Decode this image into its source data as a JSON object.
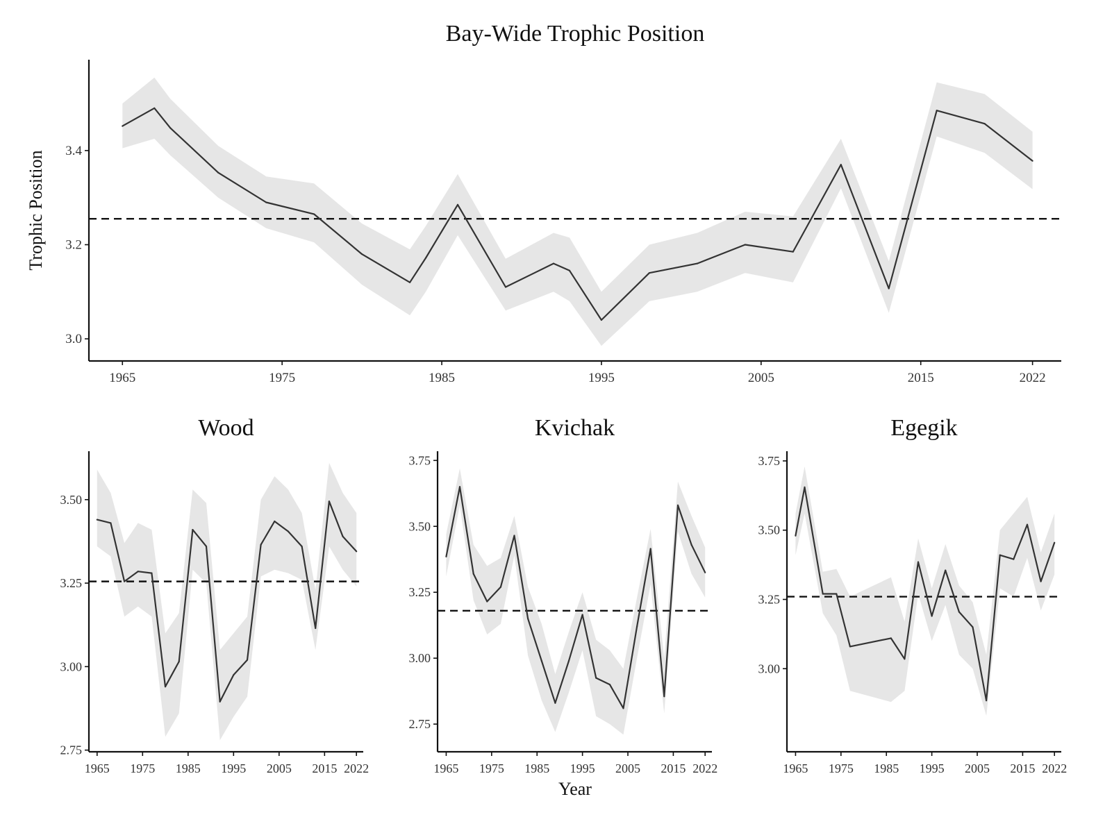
{
  "figure": {
    "title": "Bay-Wide Trophic Position",
    "ylabel": "Trophic Position",
    "xlabel": "Year"
  },
  "chart_data": [
    {
      "id": "baywide",
      "type": "line",
      "title": "Bay-Wide Trophic Position",
      "ylabel": "Trophic Position",
      "xlabel": "",
      "xlim": [
        1962.9,
        2023.8
      ],
      "ylim": [
        2.953,
        3.593
      ],
      "xticks": [
        1965,
        1975,
        1985,
        1995,
        2005,
        2015,
        2022
      ],
      "yticks": [
        3.0,
        3.2,
        3.4
      ],
      "ytick_labels": [
        "3.0",
        "3.2",
        "3.4"
      ],
      "reference_line": 3.255,
      "series": [
        {
          "name": "trophic position",
          "x": [
            1965,
            1967,
            1968,
            1971,
            1974,
            1977,
            1980,
            1983,
            1984,
            1986,
            1989,
            1992,
            1993,
            1995,
            1998,
            2001,
            2004,
            2007,
            2010,
            2013,
            2016,
            2019,
            2022
          ],
          "y": [
            3.452,
            3.49,
            3.448,
            3.353,
            3.29,
            3.265,
            3.18,
            3.12,
            3.172,
            3.285,
            3.11,
            3.16,
            3.145,
            3.04,
            3.14,
            3.16,
            3.2,
            3.185,
            3.37,
            3.107,
            3.485,
            3.457,
            3.378
          ],
          "lower": [
            3.405,
            3.425,
            3.39,
            3.3,
            3.235,
            3.205,
            3.115,
            3.05,
            3.1,
            3.22,
            3.06,
            3.1,
            3.08,
            2.985,
            3.08,
            3.1,
            3.14,
            3.12,
            3.32,
            3.055,
            3.43,
            3.395,
            3.318
          ],
          "upper": [
            3.5,
            3.555,
            3.51,
            3.41,
            3.345,
            3.33,
            3.245,
            3.19,
            3.24,
            3.35,
            3.17,
            3.225,
            3.215,
            3.1,
            3.2,
            3.225,
            3.27,
            3.26,
            3.425,
            3.165,
            3.545,
            3.52,
            3.44
          ]
        }
      ]
    },
    {
      "id": "wood",
      "type": "line",
      "title": "Wood",
      "xlim": [
        1963.2,
        2023.5
      ],
      "ylim": [
        2.745,
        3.645
      ],
      "xticks": [
        1965,
        1975,
        1985,
        1995,
        2005,
        2015,
        2022
      ],
      "yticks": [
        2.75,
        3.0,
        3.25,
        3.5
      ],
      "ytick_labels": [
        "2.75",
        "3.00",
        "3.25",
        "3.50"
      ],
      "reference_line": 3.255,
      "series": [
        {
          "name": "trophic position",
          "x": [
            1965,
            1968,
            1971,
            1974,
            1977,
            1980,
            1983,
            1986,
            1989,
            1992,
            1995,
            1998,
            2001,
            2004,
            2007,
            2010,
            2013,
            2016,
            2019,
            2022
          ],
          "y": [
            3.44,
            3.43,
            3.255,
            3.285,
            3.28,
            2.94,
            3.015,
            3.41,
            3.36,
            2.895,
            2.975,
            3.02,
            3.365,
            3.435,
            3.405,
            3.36,
            3.115,
            3.495,
            3.39,
            3.345
          ],
          "lower": [
            3.36,
            3.33,
            3.15,
            3.18,
            3.15,
            2.79,
            2.86,
            3.29,
            3.25,
            2.78,
            2.85,
            2.91,
            3.27,
            3.29,
            3.28,
            3.26,
            3.05,
            3.36,
            3.29,
            3.24
          ],
          "upper": [
            3.59,
            3.52,
            3.37,
            3.43,
            3.41,
            3.1,
            3.16,
            3.53,
            3.49,
            3.05,
            3.1,
            3.15,
            3.5,
            3.57,
            3.53,
            3.46,
            3.23,
            3.61,
            3.52,
            3.46
          ]
        }
      ]
    },
    {
      "id": "kvichak",
      "type": "line",
      "title": "Kvichak",
      "xlim": [
        1963.1,
        2023.5
      ],
      "ylim": [
        2.645,
        3.785
      ],
      "xticks": [
        1965,
        1975,
        1985,
        1995,
        2005,
        2015,
        2022
      ],
      "yticks": [
        2.75,
        3.0,
        3.25,
        3.5,
        3.75
      ],
      "ytick_labels": [
        "2.75",
        "3.00",
        "3.25",
        "3.50",
        "3.75"
      ],
      "reference_line": 3.18,
      "series": [
        {
          "name": "trophic position",
          "x": [
            1965,
            1968,
            1971,
            1974,
            1977,
            1980,
            1983,
            1986,
            1989,
            1992,
            1995,
            1998,
            2001,
            2004,
            2007,
            2010,
            2013,
            2016,
            2019,
            2022
          ],
          "y": [
            3.385,
            3.65,
            3.32,
            3.215,
            3.27,
            3.465,
            3.15,
            2.99,
            2.83,
            2.99,
            3.165,
            2.925,
            2.9,
            2.81,
            3.12,
            3.415,
            2.855,
            3.58,
            3.43,
            3.325
          ],
          "lower": [
            3.31,
            3.58,
            3.22,
            3.09,
            3.13,
            3.39,
            3.01,
            2.84,
            2.72,
            2.87,
            3.03,
            2.78,
            2.75,
            2.71,
            3.0,
            3.28,
            2.79,
            3.48,
            3.32,
            3.23
          ],
          "upper": [
            3.47,
            3.72,
            3.43,
            3.35,
            3.38,
            3.54,
            3.27,
            3.13,
            2.94,
            3.1,
            3.25,
            3.07,
            3.03,
            2.96,
            3.23,
            3.49,
            3.0,
            3.67,
            3.54,
            3.42
          ]
        }
      ]
    },
    {
      "id": "egegik",
      "type": "line",
      "title": "Egegik",
      "xlim": [
        1963.1,
        2023.5
      ],
      "ylim": [
        2.7,
        3.785
      ],
      "xticks": [
        1965,
        1975,
        1985,
        1995,
        2005,
        2015,
        2022
      ],
      "yticks": [
        3.0,
        3.25,
        3.5,
        3.75
      ],
      "ytick_labels": [
        "3.00",
        "3.25",
        "3.50",
        "3.75"
      ],
      "reference_line": 3.26,
      "series": [
        {
          "name": "trophic position",
          "x": [
            1965,
            1967,
            1971,
            1974,
            1977,
            1986,
            1989,
            1992,
            1995,
            1998,
            2001,
            2004,
            2007,
            2010,
            2013,
            2016,
            2019,
            2022
          ],
          "y": [
            3.48,
            3.655,
            3.27,
            3.27,
            3.08,
            3.11,
            3.035,
            3.385,
            3.19,
            3.355,
            3.205,
            3.15,
            2.885,
            3.41,
            3.395,
            3.52,
            3.315,
            3.455
          ],
          "lower": [
            3.41,
            3.56,
            3.2,
            3.12,
            2.92,
            2.88,
            2.92,
            3.27,
            3.1,
            3.23,
            3.05,
            3.0,
            2.83,
            3.29,
            3.26,
            3.4,
            3.21,
            3.34
          ],
          "upper": [
            3.56,
            3.73,
            3.35,
            3.36,
            3.26,
            3.33,
            3.17,
            3.47,
            3.29,
            3.45,
            3.3,
            3.24,
            3.05,
            3.5,
            3.56,
            3.62,
            3.42,
            3.56
          ]
        }
      ]
    }
  ]
}
